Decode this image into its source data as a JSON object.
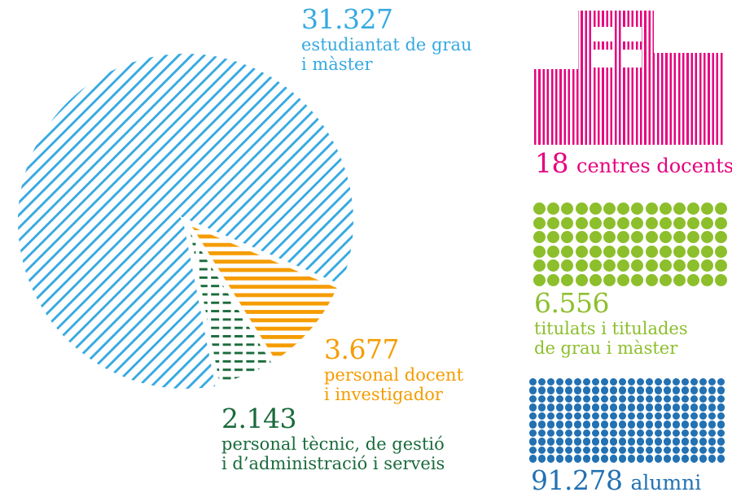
{
  "colors": {
    "students_blue": "#36A9E1",
    "pdi_orange": "#F59C00",
    "pas_green": "#1A6B3C",
    "centres_pink": "#E6007E",
    "graduates_green": "#8CBF2B",
    "alumni_blue": "#2271B3"
  },
  "pie_labels": {
    "students": {
      "value": "31.327",
      "line1": "estudiantat de grau",
      "line2": "i màster"
    },
    "pdi": {
      "value": "3.677",
      "line1": "personal docent",
      "line2": "i investigador"
    },
    "pas": {
      "value": "2.143",
      "line1": "personal tècnic, de gestió",
      "line2": "i d’administració i serveis"
    }
  },
  "stats": {
    "centres": {
      "value": "18",
      "label": "centres docents"
    },
    "graduates": {
      "value": "6.556",
      "line1": "titulats i titulades",
      "line2": "de grau i màster"
    },
    "alumni": {
      "value": "91.278",
      "label": "alumni"
    }
  },
  "grids": {
    "graduates": {
      "rows": 6,
      "cols": 14,
      "dot": 15,
      "gapx": 2.2,
      "gapy": 2.6,
      "color_var": "--green-light"
    },
    "alumni": {
      "rows": 10,
      "cols": 22,
      "dot": 9.4,
      "gapx": 1.6,
      "gapy": 1.1,
      "color_var": "--blue-dots"
    }
  },
  "chart_data": [
    {
      "type": "pie",
      "title": "",
      "slices": [
        {
          "label": "estudiantat de grau i màster",
          "value": 31327,
          "color": "#36A9E1",
          "pattern": "diagonal-hatch-lines"
        },
        {
          "label": "personal docent i investigador",
          "value": 3677,
          "color": "#F59C00",
          "pattern": "horizontal-stripes"
        },
        {
          "label": "personal tècnic, de gestió i d’administració i serveis",
          "value": 2143,
          "color": "#1A6B3C",
          "pattern": "horizontal-dashes"
        }
      ],
      "legend_position": "labels-around-chart",
      "minor_slices_angular_range_deg": [
        -23,
        -79
      ]
    },
    {
      "type": "pictogram",
      "icon": "striped-building",
      "label": "centres docents",
      "value": 18,
      "color": "#E6007E"
    },
    {
      "type": "pictogram",
      "icon": "dot-grid",
      "rows": 6,
      "cols": 14,
      "label": "titulats i titulades de grau i màster",
      "value": 6556,
      "color": "#8CBF2B"
    },
    {
      "type": "pictogram",
      "icon": "dot-grid",
      "rows": 10,
      "cols": 22,
      "label": "alumni",
      "value": 91278,
      "color": "#2271B3"
    }
  ]
}
